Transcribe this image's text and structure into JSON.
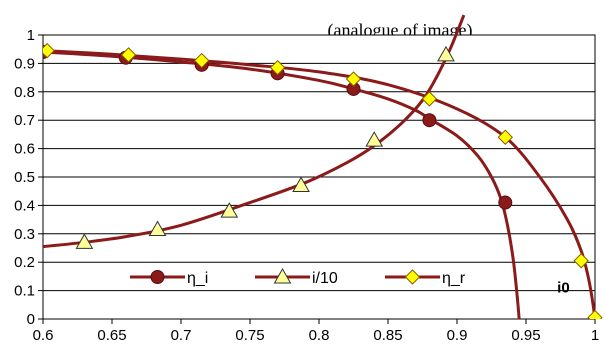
{
  "chart_data": {
    "type": "line",
    "title": "(analogue of image)",
    "xlim": [
      0.6,
      1.0
    ],
    "ylim": [
      0,
      1
    ],
    "x_ticks": [
      "0.6",
      "0.65",
      "0.7",
      "0.75",
      "0.8",
      "0.85",
      "0.9",
      "0.95",
      "1"
    ],
    "y_ticks": [
      "0",
      "0.1",
      "0.2",
      "0.3",
      "0.4",
      "0.5",
      "0.6",
      "0.7",
      "0.8",
      "0.9",
      "1"
    ],
    "grid": "horizontal",
    "legend_position": "bottom-center",
    "series": [
      {
        "name": "η_i",
        "color": "#8b1a1a",
        "marker": "circle",
        "curve": [
          [
            0.575,
            0.945
          ],
          [
            0.6,
            0.94
          ],
          [
            0.65,
            0.925
          ],
          [
            0.7,
            0.905
          ],
          [
            0.75,
            0.88
          ],
          [
            0.8,
            0.84
          ],
          [
            0.825,
            0.81
          ],
          [
            0.85,
            0.775
          ],
          [
            0.87,
            0.735
          ],
          [
            0.88,
            0.705
          ],
          [
            0.9,
            0.645
          ],
          [
            0.915,
            0.575
          ],
          [
            0.925,
            0.5
          ],
          [
            0.932,
            0.42
          ],
          [
            0.937,
            0.32
          ],
          [
            0.941,
            0.2
          ],
          [
            0.944,
            0.06
          ],
          [
            0.946,
            -0.06
          ]
        ],
        "markers": [
          [
            0.6,
            0.94
          ],
          [
            0.66,
            0.92
          ],
          [
            0.715,
            0.895
          ],
          [
            0.77,
            0.865
          ],
          [
            0.825,
            0.81
          ],
          [
            0.88,
            0.7
          ],
          [
            0.935,
            0.41
          ]
        ]
      },
      {
        "name": "i/10",
        "color": "#8b1a1a",
        "marker": "triangle",
        "curve": [
          [
            0.575,
            0.245
          ],
          [
            0.6,
            0.255
          ],
          [
            0.63,
            0.27
          ],
          [
            0.66,
            0.29
          ],
          [
            0.7,
            0.33
          ],
          [
            0.75,
            0.41
          ],
          [
            0.79,
            0.48
          ],
          [
            0.82,
            0.55
          ],
          [
            0.84,
            0.61
          ],
          [
            0.86,
            0.69
          ],
          [
            0.875,
            0.77
          ],
          [
            0.885,
            0.85
          ],
          [
            0.895,
            0.95
          ],
          [
            0.905,
            1.07
          ]
        ],
        "markers": [
          [
            0.63,
            0.27
          ],
          [
            0.683,
            0.315
          ],
          [
            0.735,
            0.38
          ],
          [
            0.787,
            0.47
          ],
          [
            0.84,
            0.63
          ],
          [
            0.892,
            0.93
          ]
        ]
      },
      {
        "name": "η_r",
        "color": "#8b1a1a",
        "marker": "diamond",
        "curve": [
          [
            0.575,
            0.95
          ],
          [
            0.6,
            0.945
          ],
          [
            0.65,
            0.932
          ],
          [
            0.7,
            0.915
          ],
          [
            0.75,
            0.895
          ],
          [
            0.8,
            0.87
          ],
          [
            0.85,
            0.825
          ],
          [
            0.9,
            0.74
          ],
          [
            0.935,
            0.64
          ],
          [
            0.96,
            0.5
          ],
          [
            0.98,
            0.35
          ],
          [
            0.99,
            0.24
          ],
          [
            0.995,
            0.15
          ],
          [
            0.998,
            0.07
          ],
          [
            1.0,
            0.0
          ]
        ],
        "markers": [
          [
            0.603,
            0.945
          ],
          [
            0.662,
            0.93
          ],
          [
            0.715,
            0.91
          ],
          [
            0.77,
            0.885
          ],
          [
            0.825,
            0.845
          ],
          [
            0.88,
            0.775
          ],
          [
            0.935,
            0.64
          ],
          [
            0.99,
            0.205
          ],
          [
            1.0,
            0.005
          ]
        ]
      }
    ],
    "annotations": [
      {
        "text": "i0",
        "x": 0.986,
        "y": 0.1
      }
    ]
  }
}
